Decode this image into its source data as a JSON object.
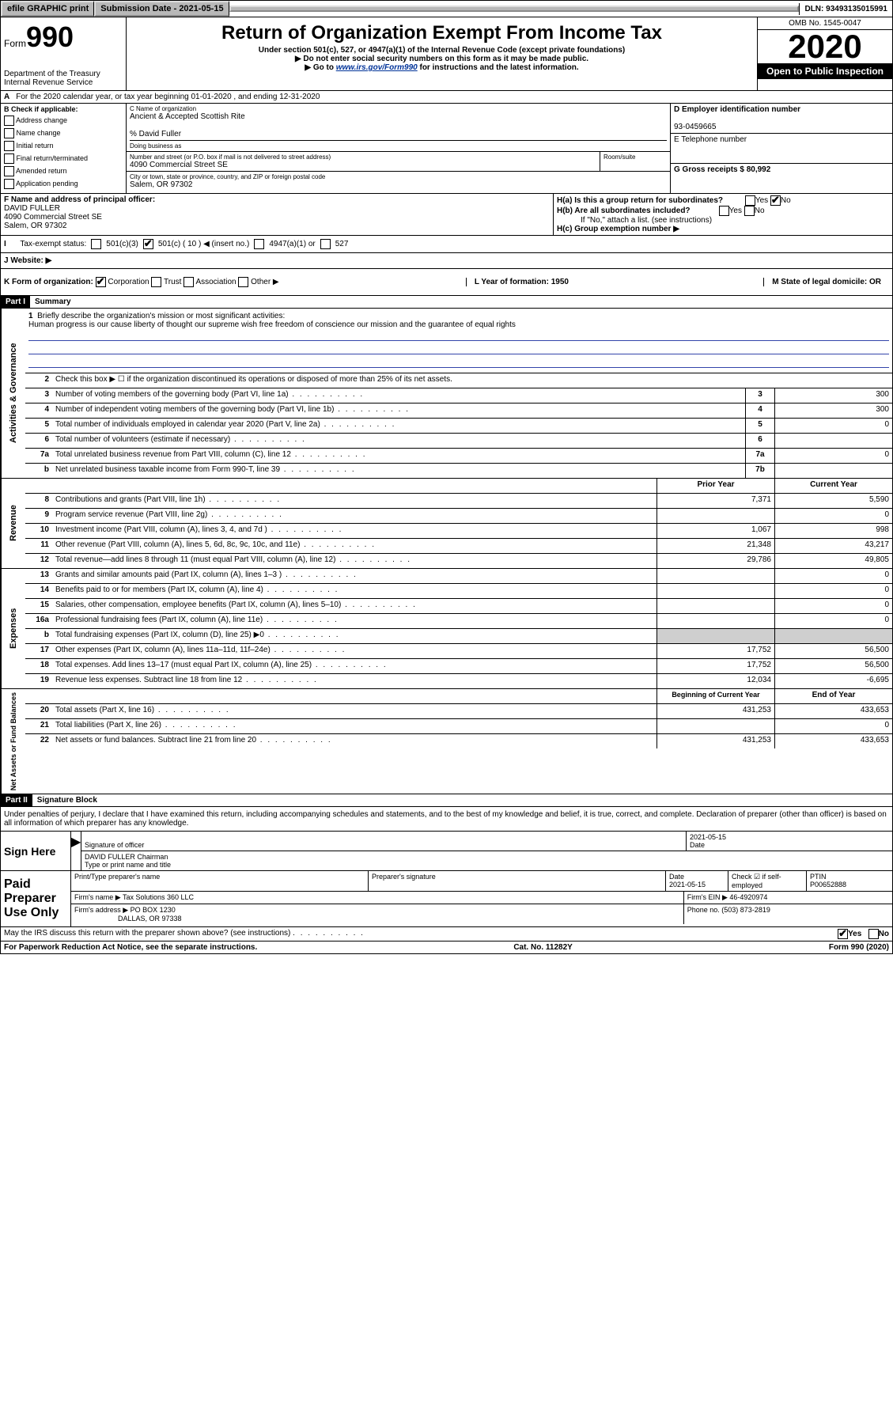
{
  "topbar": {
    "efile": "efile GRAPHIC print",
    "submission": "Submission Date - 2021-05-15",
    "dln": "DLN: 93493135015991"
  },
  "header": {
    "form_prefix": "Form",
    "form_number": "990",
    "dept": "Department of the Treasury Internal Revenue Service",
    "title": "Return of Organization Exempt From Income Tax",
    "subtitle": "Under section 501(c), 527, or 4947(a)(1) of the Internal Revenue Code (except private foundations)",
    "note1": "▶ Do not enter social security numbers on this form as it may be made public.",
    "note2_pre": "▶ Go to ",
    "note2_link": "www.irs.gov/Form990",
    "note2_post": " for instructions and the latest information.",
    "omb": "OMB No. 1545-0047",
    "year": "2020",
    "public": "Open to Public Inspection"
  },
  "line_a": "For the 2020 calendar year, or tax year beginning 01-01-2020    , and ending 12-31-2020",
  "box_b": {
    "label": "B Check if applicable:",
    "items": [
      "Address change",
      "Name change",
      "Initial return",
      "Final return/terminated",
      "Amended return",
      "Application pending"
    ]
  },
  "box_c": {
    "name_label": "C Name of organization",
    "name": "Ancient & Accepted Scottish Rite",
    "care_of": "% David Fuller",
    "dba_label": "Doing business as",
    "street_label": "Number and street (or P.O. box if mail is not delivered to street address)",
    "street": "4090 Commercial Street SE",
    "room_label": "Room/suite",
    "city_label": "City or town, state or province, country, and ZIP or foreign postal code",
    "city": "Salem, OR  97302"
  },
  "box_d": {
    "label": "D Employer identification number",
    "value": "93-0459665"
  },
  "box_e": {
    "label": "E Telephone number"
  },
  "box_g": {
    "label": "G Gross receipts $ 80,992"
  },
  "box_f": {
    "label": "F  Name and address of principal officer:",
    "name": "DAVID FULLER",
    "street": "4090 Commercial Street SE",
    "city": "Salem, OR  97302"
  },
  "box_h": {
    "ha": "H(a)  Is this a group return for subordinates?",
    "hb": "H(b)  Are all subordinates included?",
    "hb_note": "If \"No,\" attach a list. (see instructions)",
    "hc": "H(c)  Group exemption number ▶"
  },
  "box_i": {
    "label": "Tax-exempt status:",
    "opt1": "501(c)(3)",
    "opt2": "501(c) ( 10 ) ◀ (insert no.)",
    "opt3": "4947(a)(1) or",
    "opt4": "527"
  },
  "box_j": "J   Website: ▶",
  "box_k": {
    "label": "K Form of organization:",
    "opts": [
      "Corporation",
      "Trust",
      "Association",
      "Other ▶"
    ],
    "l": "L Year of formation: 1950",
    "m": "M State of legal domicile: OR"
  },
  "part1": {
    "header": "Part I",
    "title": "Summary",
    "q1": "Briefly describe the organization's mission or most significant activities:",
    "q1_ans": "Human progress is our cause liberty of thought our supreme wish free freedom of conscience our mission and the guarantee of equal rights",
    "q2": "Check this box ▶ ☐  if the organization discontinued its operations or disposed of more than 25% of its net assets.",
    "rows_gov": [
      {
        "n": "3",
        "label": "Number of voting members of the governing body (Part VI, line 1a)",
        "cell": "3",
        "val": "300"
      },
      {
        "n": "4",
        "label": "Number of independent voting members of the governing body (Part VI, line 1b)",
        "cell": "4",
        "val": "300"
      },
      {
        "n": "5",
        "label": "Total number of individuals employed in calendar year 2020 (Part V, line 2a)",
        "cell": "5",
        "val": "0"
      },
      {
        "n": "6",
        "label": "Total number of volunteers (estimate if necessary)",
        "cell": "6",
        "val": ""
      },
      {
        "n": "7a",
        "label": "Total unrelated business revenue from Part VIII, column (C), line 12",
        "cell": "7a",
        "val": "0"
      },
      {
        "n": "b",
        "label": "Net unrelated business taxable income from Form 990-T, line 39",
        "cell": "7b",
        "val": ""
      }
    ],
    "header_prior": "Prior Year",
    "header_current": "Current Year",
    "rows_rev": [
      {
        "n": "8",
        "label": "Contributions and grants (Part VIII, line 1h)",
        "prior": "7,371",
        "cur": "5,590"
      },
      {
        "n": "9",
        "label": "Program service revenue (Part VIII, line 2g)",
        "prior": "",
        "cur": "0"
      },
      {
        "n": "10",
        "label": "Investment income (Part VIII, column (A), lines 3, 4, and 7d )",
        "prior": "1,067",
        "cur": "998"
      },
      {
        "n": "11",
        "label": "Other revenue (Part VIII, column (A), lines 5, 6d, 8c, 9c, 10c, and 11e)",
        "prior": "21,348",
        "cur": "43,217"
      },
      {
        "n": "12",
        "label": "Total revenue—add lines 8 through 11 (must equal Part VIII, column (A), line 12)",
        "prior": "29,786",
        "cur": "49,805"
      }
    ],
    "rows_exp": [
      {
        "n": "13",
        "label": "Grants and similar amounts paid (Part IX, column (A), lines 1–3 )",
        "prior": "",
        "cur": "0"
      },
      {
        "n": "14",
        "label": "Benefits paid to or for members (Part IX, column (A), line 4)",
        "prior": "",
        "cur": "0"
      },
      {
        "n": "15",
        "label": "Salaries, other compensation, employee benefits (Part IX, column (A), lines 5–10)",
        "prior": "",
        "cur": "0"
      },
      {
        "n": "16a",
        "label": "Professional fundraising fees (Part IX, column (A), line 11e)",
        "prior": "",
        "cur": "0"
      },
      {
        "n": "b",
        "label": "Total fundraising expenses (Part IX, column (D), line 25) ▶0",
        "prior": "shaded",
        "cur": "shaded"
      },
      {
        "n": "17",
        "label": "Other expenses (Part IX, column (A), lines 11a–11d, 11f–24e)",
        "prior": "17,752",
        "cur": "56,500"
      },
      {
        "n": "18",
        "label": "Total expenses. Add lines 13–17 (must equal Part IX, column (A), line 25)",
        "prior": "17,752",
        "cur": "56,500"
      },
      {
        "n": "19",
        "label": "Revenue less expenses. Subtract line 18 from line 12",
        "prior": "12,034",
        "cur": "-6,695"
      }
    ],
    "header_begin": "Beginning of Current Year",
    "header_end": "End of Year",
    "rows_net": [
      {
        "n": "20",
        "label": "Total assets (Part X, line 16)",
        "prior": "431,253",
        "cur": "433,653"
      },
      {
        "n": "21",
        "label": "Total liabilities (Part X, line 26)",
        "prior": "",
        "cur": "0"
      },
      {
        "n": "22",
        "label": "Net assets or fund balances. Subtract line 21 from line 20",
        "prior": "431,253",
        "cur": "433,653"
      }
    ]
  },
  "part2": {
    "header": "Part II",
    "title": "Signature Block",
    "declaration": "Under penalties of perjury, I declare that I have examined this return, including accompanying schedules and statements, and to the best of my knowledge and belief, it is true, correct, and complete. Declaration of preparer (other than officer) is based on all information of which preparer has any knowledge."
  },
  "sign": {
    "label": "Sign Here",
    "sig_officer": "Signature of officer",
    "date": "2021-05-15",
    "date_label": "Date",
    "name": "DAVID FULLER  Chairman",
    "name_label": "Type or print name and title"
  },
  "preparer": {
    "label": "Paid Preparer Use Only",
    "h1": "Print/Type preparer's name",
    "h2": "Preparer's signature",
    "h3": "Date",
    "h3_val": "2021-05-15",
    "h4": "Check ☑ if self-employed",
    "h5": "PTIN",
    "h5_val": "P00652888",
    "firm_name_label": "Firm's name     ▶",
    "firm_name": "Tax Solutions 360 LLC",
    "firm_ein": "Firm's EIN ▶ 46-4920974",
    "firm_addr_label": "Firm's address ▶",
    "firm_addr": "PO BOX 1230",
    "firm_city": "DALLAS, OR  97338",
    "phone": "Phone no. (503) 873-2819"
  },
  "footer": {
    "discuss": "May the IRS discuss this return with the preparer shown above? (see instructions)",
    "yes": "Yes",
    "no": "No",
    "paperwork": "For Paperwork Reduction Act Notice, see the separate instructions.",
    "cat": "Cat. No. 11282Y",
    "formref": "Form 990 (2020)"
  },
  "side_labels": {
    "gov": "Activities & Governance",
    "rev": "Revenue",
    "exp": "Expenses",
    "net": "Net Assets or Fund Balances"
  }
}
